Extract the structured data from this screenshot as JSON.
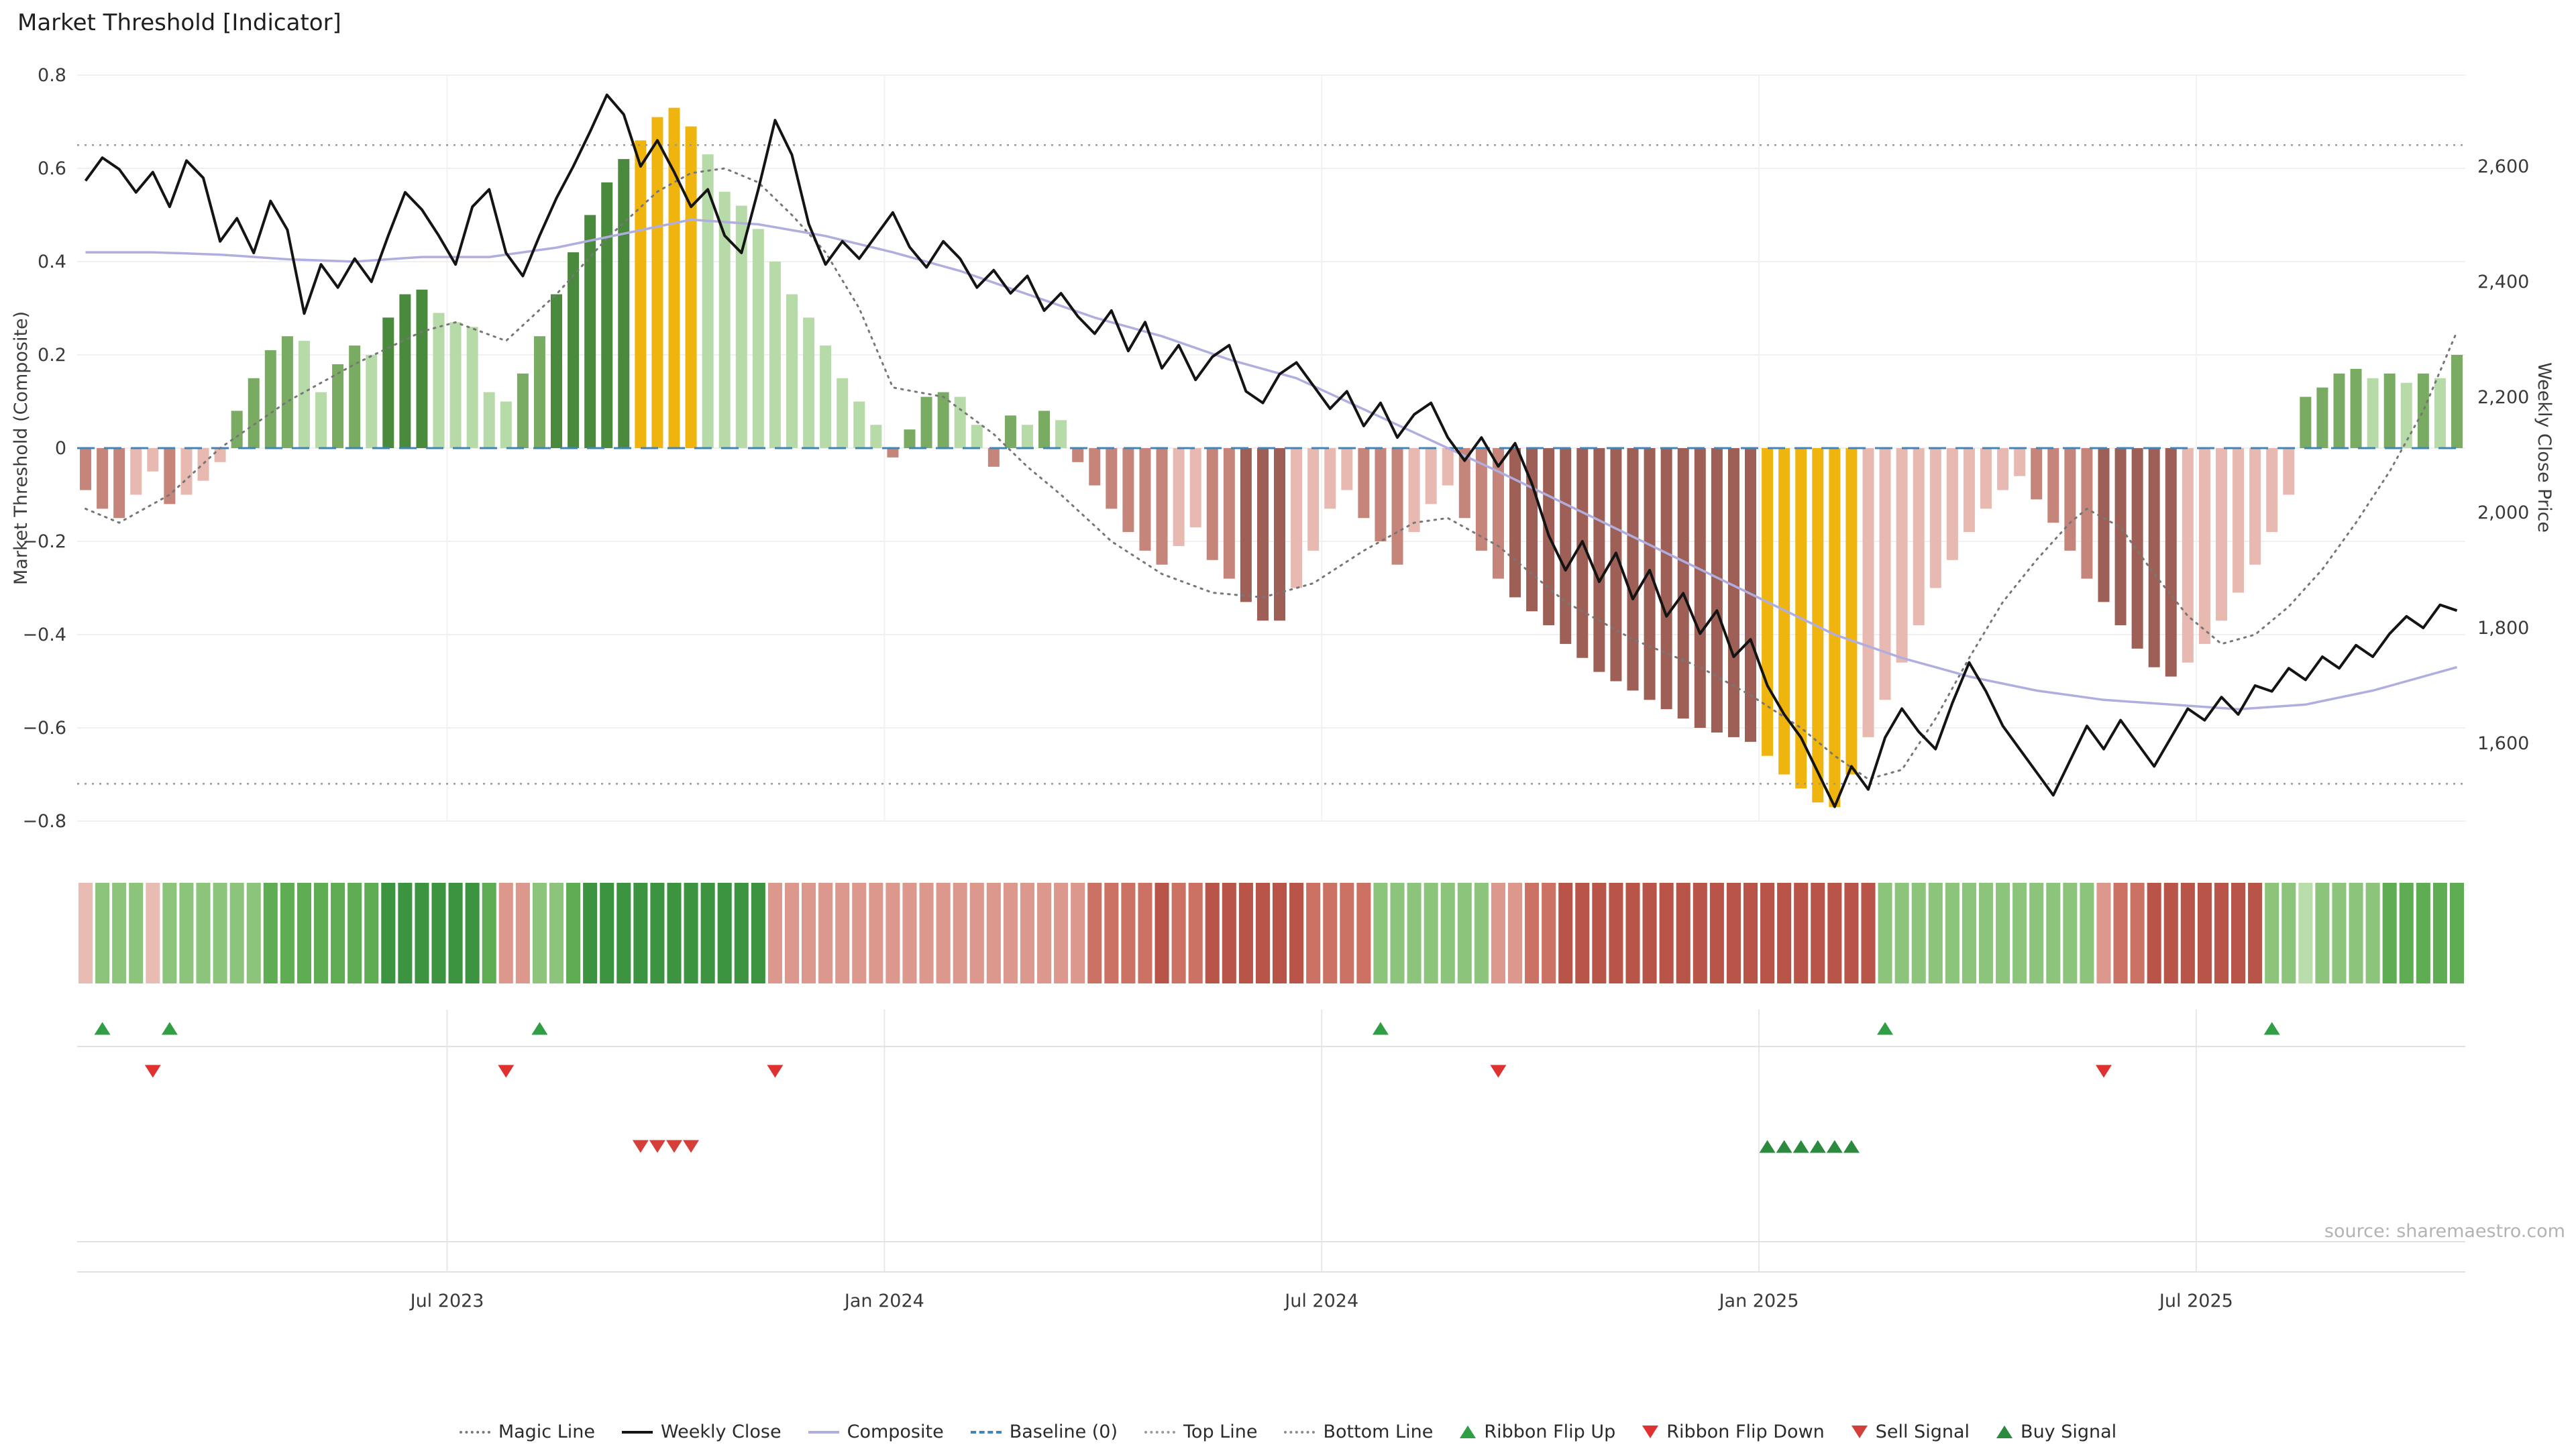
{
  "title": "Market Threshold [Indicator]",
  "source": "source: sharemaestro.com",
  "axes": {
    "left": {
      "label": "Market Threshold (Composite)",
      "tick_labels": [
        "0.8",
        "0.6",
        "0.4",
        "0.2",
        "0",
        "−0.2",
        "−0.4",
        "−0.6",
        "−0.8"
      ],
      "tick_values": [
        0.8,
        0.6,
        0.4,
        0.2,
        0,
        -0.2,
        -0.4,
        -0.6,
        -0.8
      ],
      "range": [
        -0.8,
        0.8
      ]
    },
    "right": {
      "label": "Weekly Close Price",
      "tick_labels": [
        "2,600",
        "2,400",
        "2,200",
        "2,000",
        "1,800",
        "1,600"
      ],
      "tick_values": [
        2600,
        2400,
        2200,
        2000,
        1800,
        1600
      ]
    },
    "x": {
      "tick_labels": [
        "Jul 2023",
        "Jan 2024",
        "Jul 2024",
        "Jan 2025",
        "Jul 2025"
      ],
      "tick_weeks": [
        21.5,
        47.5,
        73.5,
        99.5,
        125.5
      ]
    }
  },
  "legend": [
    {
      "label": "Magic Line",
      "glyph": "dotted-line",
      "color": "#777777"
    },
    {
      "label": "Weekly Close",
      "glyph": "solid-line",
      "color": "#141414"
    },
    {
      "label": "Composite",
      "glyph": "solid-line",
      "color": "#b0aede"
    },
    {
      "label": "Baseline (0)",
      "glyph": "dashed-line",
      "color": "#4284b8"
    },
    {
      "label": "Top Line",
      "glyph": "dotted-line",
      "color": "#999999"
    },
    {
      "label": "Bottom Line",
      "glyph": "dotted-line",
      "color": "#8a8a8a"
    },
    {
      "label": "Ribbon Flip Up",
      "glyph": "triangle-up",
      "color": "#2f9e44"
    },
    {
      "label": "Ribbon Flip Down",
      "glyph": "triangle-down",
      "color": "#e03131"
    },
    {
      "label": "Sell Signal",
      "glyph": "triangle-down",
      "color": "#d43f3a"
    },
    {
      "label": "Buy Signal",
      "glyph": "triangle-up",
      "color": "#2b8a3e"
    }
  ],
  "colors": {
    "green_dark": "#4a8a3c",
    "green_mid": "#79ab62",
    "green_light": "#b7dba8",
    "red_dark": "#9d5f56",
    "red_mid": "#c5857b",
    "red_light": "#e8b9b0",
    "extreme_gold": "#f0b40e",
    "baseline_blue": "#4284b8",
    "composite_purple": "#b0aede",
    "magic_gray": "#777777",
    "top_bottom_gray": "#999999",
    "weekly_close_black": "#141414",
    "signal_green": "#2f9e44",
    "signal_red": "#e03131",
    "sell_red": "#d43f3a",
    "buy_green": "#2b8a3e",
    "ribbon_greens": [
      "#ddeed6",
      "#b9dcab",
      "#8cc47c",
      "#5ead52",
      "#3c9440"
    ],
    "ribbon_reds": [
      "#f4ded9",
      "#e9bcb3",
      "#dc988c",
      "#cc7265",
      "#b85448"
    ]
  },
  "chart_data": {
    "type": "combo-bar-line",
    "n_weeks": 142,
    "series": {
      "threshold_bars": [
        -0.09,
        -0.13,
        -0.15,
        -0.1,
        -0.05,
        -0.12,
        -0.1,
        -0.07,
        -0.03,
        0.08,
        0.15,
        0.21,
        0.24,
        0.23,
        0.12,
        0.18,
        0.22,
        0.2,
        0.28,
        0.33,
        0.34,
        0.29,
        0.27,
        0.26,
        0.12,
        0.1,
        0.16,
        0.24,
        0.33,
        0.42,
        0.5,
        0.57,
        0.62,
        0.66,
        0.71,
        0.73,
        0.69,
        0.63,
        0.55,
        0.52,
        0.47,
        0.4,
        0.33,
        0.28,
        0.22,
        0.15,
        0.1,
        0.05,
        -0.02,
        0.04,
        0.11,
        0.12,
        0.11,
        0.05,
        -0.04,
        0.07,
        0.05,
        0.08,
        0.06,
        -0.03,
        -0.08,
        -0.13,
        -0.18,
        -0.22,
        -0.25,
        -0.21,
        -0.17,
        -0.24,
        -0.28,
        -0.33,
        -0.37,
        -0.37,
        -0.3,
        -0.22,
        -0.13,
        -0.09,
        -0.15,
        -0.2,
        -0.25,
        -0.18,
        -0.12,
        -0.08,
        -0.15,
        -0.22,
        -0.28,
        -0.32,
        -0.35,
        -0.38,
        -0.42,
        -0.45,
        -0.48,
        -0.5,
        -0.52,
        -0.54,
        -0.56,
        -0.58,
        -0.6,
        -0.61,
        -0.62,
        -0.63,
        -0.66,
        -0.7,
        -0.73,
        -0.76,
        -0.77,
        -0.7,
        -0.62,
        -0.54,
        -0.46,
        -0.38,
        -0.3,
        -0.24,
        -0.18,
        -0.13,
        -0.09,
        -0.06,
        -0.11,
        -0.16,
        -0.22,
        -0.28,
        -0.33,
        -0.38,
        -0.43,
        -0.47,
        -0.49,
        -0.46,
        -0.42,
        -0.37,
        -0.31,
        -0.25,
        -0.18,
        -0.1,
        0.11,
        0.13,
        0.16,
        0.17,
        0.15,
        0.16,
        0.14,
        0.16,
        0.15,
        0.2
      ],
      "weekly_close_price": [
        2575,
        2615,
        2595,
        2555,
        2590,
        2530,
        2610,
        2580,
        2470,
        2510,
        2450,
        2540,
        2490,
        2345,
        2430,
        2390,
        2440,
        2400,
        2480,
        2555,
        2525,
        2480,
        2430,
        2530,
        2560,
        2450,
        2410,
        2480,
        2545,
        2600,
        2660,
        2724,
        2690,
        2600,
        2645,
        2590,
        2530,
        2560,
        2480,
        2450,
        2560,
        2680,
        2620,
        2500,
        2430,
        2470,
        2440,
        2480,
        2520,
        2460,
        2425,
        2470,
        2440,
        2390,
        2420,
        2380,
        2410,
        2350,
        2380,
        2340,
        2310,
        2350,
        2280,
        2330,
        2250,
        2290,
        2230,
        2270,
        2290,
        2210,
        2190,
        2240,
        2260,
        2220,
        2180,
        2210,
        2150,
        2190,
        2130,
        2170,
        2190,
        2130,
        2090,
        2130,
        2080,
        2120,
        2050,
        1960,
        1900,
        1950,
        1880,
        1930,
        1850,
        1900,
        1820,
        1860,
        1790,
        1830,
        1750,
        1780,
        1700,
        1650,
        1610,
        1550,
        1490,
        1560,
        1520,
        1610,
        1660,
        1620,
        1590,
        1670,
        1740,
        1690,
        1630,
        1590,
        1550,
        1510,
        1570,
        1630,
        1590,
        1640,
        1600,
        1560,
        1610,
        1660,
        1640,
        1680,
        1650,
        1700,
        1690,
        1730,
        1710,
        1750,
        1730,
        1770,
        1750,
        1790,
        1820,
        1800,
        1840,
        1830
      ],
      "composite_anchor_points": [
        [
          0,
          0.42
        ],
        [
          4,
          0.42
        ],
        [
          8,
          0.415
        ],
        [
          12,
          0.405
        ],
        [
          16,
          0.4
        ],
        [
          20,
          0.41
        ],
        [
          24,
          0.41
        ],
        [
          28,
          0.43
        ],
        [
          32,
          0.46
        ],
        [
          36,
          0.49
        ],
        [
          40,
          0.48
        ],
        [
          44,
          0.455
        ],
        [
          48,
          0.42
        ],
        [
          52,
          0.38
        ],
        [
          56,
          0.33
        ],
        [
          60,
          0.28
        ],
        [
          64,
          0.24
        ],
        [
          68,
          0.19
        ],
        [
          72,
          0.15
        ],
        [
          75,
          0.1
        ],
        [
          78,
          0.05
        ],
        [
          81,
          0.0
        ],
        [
          84,
          -0.05
        ],
        [
          88,
          -0.12
        ],
        [
          92,
          -0.19
        ],
        [
          96,
          -0.26
        ],
        [
          100,
          -0.33
        ],
        [
          104,
          -0.4
        ],
        [
          108,
          -0.45
        ],
        [
          112,
          -0.49
        ],
        [
          116,
          -0.52
        ],
        [
          120,
          -0.54
        ],
        [
          124,
          -0.55
        ],
        [
          128,
          -0.56
        ],
        [
          132,
          -0.55
        ],
        [
          136,
          -0.52
        ],
        [
          139,
          -0.49
        ],
        [
          141,
          -0.47
        ]
      ],
      "magic_line_anchor_points": [
        [
          0,
          -0.13
        ],
        [
          2,
          -0.16
        ],
        [
          5,
          -0.1
        ],
        [
          8,
          0.0
        ],
        [
          12,
          0.1
        ],
        [
          16,
          0.18
        ],
        [
          20,
          0.25
        ],
        [
          22,
          0.27
        ],
        [
          25,
          0.23
        ],
        [
          28,
          0.33
        ],
        [
          31,
          0.45
        ],
        [
          34,
          0.55
        ],
        [
          36,
          0.59
        ],
        [
          38,
          0.6
        ],
        [
          40,
          0.57
        ],
        [
          42,
          0.5
        ],
        [
          44,
          0.42
        ],
        [
          46,
          0.3
        ],
        [
          48,
          0.13
        ],
        [
          51,
          0.11
        ],
        [
          54,
          0.03
        ],
        [
          56,
          -0.04
        ],
        [
          58,
          -0.1
        ],
        [
          61,
          -0.2
        ],
        [
          64,
          -0.27
        ],
        [
          67,
          -0.31
        ],
        [
          70,
          -0.32
        ],
        [
          73,
          -0.29
        ],
        [
          76,
          -0.22
        ],
        [
          79,
          -0.16
        ],
        [
          81,
          -0.15
        ],
        [
          84,
          -0.21
        ],
        [
          88,
          -0.33
        ],
        [
          92,
          -0.41
        ],
        [
          96,
          -0.47
        ],
        [
          99,
          -0.53
        ],
        [
          102,
          -0.6
        ],
        [
          104,
          -0.66
        ],
        [
          106,
          -0.71
        ],
        [
          108,
          -0.69
        ],
        [
          110,
          -0.58
        ],
        [
          112,
          -0.45
        ],
        [
          114,
          -0.33
        ],
        [
          116,
          -0.24
        ],
        [
          118,
          -0.16
        ],
        [
          119,
          -0.13
        ],
        [
          121,
          -0.17
        ],
        [
          123,
          -0.27
        ],
        [
          125,
          -0.36
        ],
        [
          127,
          -0.42
        ],
        [
          129,
          -0.4
        ],
        [
          131,
          -0.34
        ],
        [
          133,
          -0.26
        ],
        [
          135,
          -0.16
        ],
        [
          137,
          -0.05
        ],
        [
          139,
          0.08
        ],
        [
          141,
          0.25
        ]
      ],
      "baseline": 0,
      "top_line": 0.65,
      "bottom_line": -0.72
    },
    "ribbon_flips": {
      "up_weeks": [
        1,
        5,
        27,
        77,
        107,
        130
      ],
      "down_weeks": [
        4,
        25,
        41,
        84,
        120
      ]
    },
    "signals": {
      "sell_weeks": [
        33,
        34,
        35,
        36
      ],
      "buy_weeks": [
        100,
        101,
        102,
        103,
        104,
        105
      ]
    }
  }
}
